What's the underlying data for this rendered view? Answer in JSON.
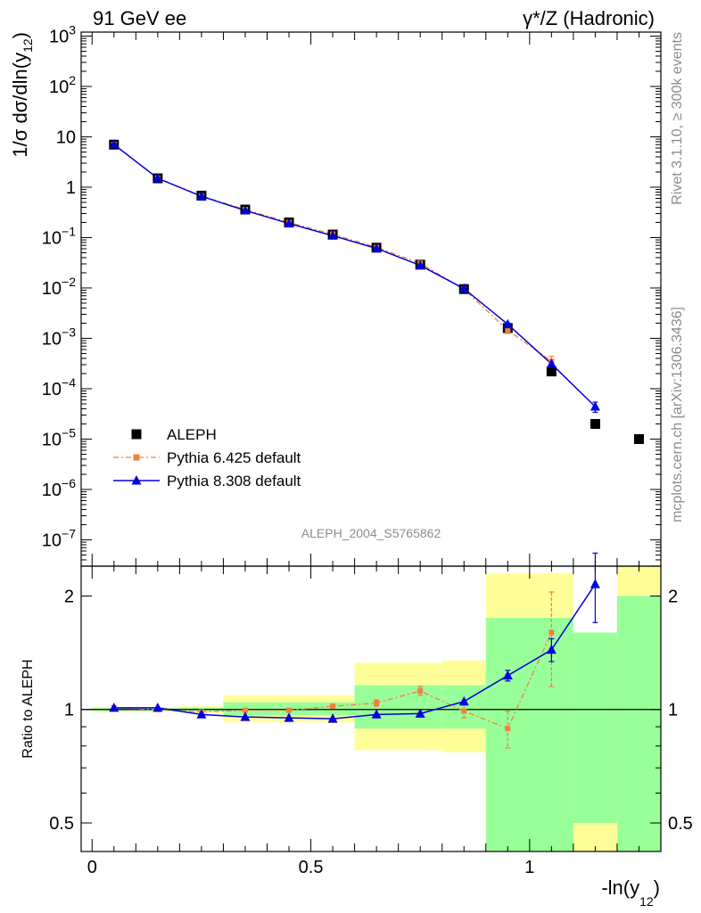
{
  "header": {
    "left": "91 GeV ee",
    "right": "γ*/Z (Hadronic)"
  },
  "side_labels": {
    "top": "Rivet 3.1.10, ≥ 300k events",
    "bottom": "mcplots.cern.ch [arXiv:1306.3436]"
  },
  "analysis_id": "ALEPH_2004_S5765862",
  "colors": {
    "aleph": "#000000",
    "pythia6": "#f08040",
    "pythia8": "#0000dd",
    "band_outer": "#ffff99",
    "band_inner": "#99ff99"
  },
  "chart_data": [
    {
      "type": "scatter",
      "panel": "main",
      "ylabel_parts": [
        "1/σ  dσ/dln(y",
        "12",
        ")"
      ],
      "xlabel_parts": [
        "-ln(y",
        "12",
        ")"
      ],
      "yscale": "log",
      "xlim": [
        -0.025,
        1.3
      ],
      "ylim": [
        3e-08,
        1200
      ],
      "y_ticks": [
        {
          "value": 1000,
          "base": "10",
          "exp": "3"
        },
        {
          "value": 100,
          "base": "10",
          "exp": "2"
        },
        {
          "value": 10,
          "base": "10",
          "exp": ""
        },
        {
          "value": 1,
          "base": "1",
          "exp": ""
        },
        {
          "value": 0.1,
          "base": "10",
          "exp": "−1"
        },
        {
          "value": 0.01,
          "base": "10",
          "exp": "−2"
        },
        {
          "value": 0.001,
          "base": "10",
          "exp": "−3"
        },
        {
          "value": 0.0001,
          "base": "10",
          "exp": "−4"
        },
        {
          "value": 1e-05,
          "base": "10",
          "exp": "−5"
        },
        {
          "value": 1e-06,
          "base": "10",
          "exp": "−6"
        },
        {
          "value": 1e-07,
          "base": "10",
          "exp": "−7"
        }
      ],
      "legend_position": "lower-left",
      "legend": [
        {
          "label": "ALEPH",
          "key": "aleph"
        },
        {
          "label": "Pythia 6.425 default",
          "key": "pythia6"
        },
        {
          "label": "Pythia 8.308 default",
          "key": "pythia8"
        }
      ],
      "series": [
        {
          "name": "ALEPH",
          "key": "aleph",
          "x": [
            0.05,
            0.15,
            0.25,
            0.35,
            0.45,
            0.55,
            0.65,
            0.75,
            0.85,
            0.95,
            1.05,
            1.15,
            1.25
          ],
          "y": [
            7.0,
            1.5,
            0.68,
            0.36,
            0.2,
            0.115,
            0.063,
            0.029,
            0.0095,
            0.0016,
            0.00022,
            2e-05,
            1e-05
          ]
        },
        {
          "name": "Pythia 6.425 default",
          "key": "pythia6",
          "x": [
            0.05,
            0.15,
            0.25,
            0.35,
            0.45,
            0.55,
            0.65,
            0.75,
            0.85,
            0.95,
            1.05
          ],
          "y": [
            7.1,
            1.52,
            0.67,
            0.36,
            0.2,
            0.117,
            0.064,
            0.031,
            0.0094,
            0.00145,
            0.00035
          ],
          "err_hi": [
            0,
            0,
            0,
            0,
            0,
            0,
            0,
            0,
            0,
            0.0002,
            9e-05
          ],
          "err_lo": [
            0,
            0,
            0,
            0,
            0,
            0,
            0,
            0,
            0,
            0.0002,
            9e-05
          ]
        },
        {
          "name": "Pythia 8.308 default",
          "key": "pythia8",
          "x": [
            0.05,
            0.15,
            0.25,
            0.35,
            0.45,
            0.55,
            0.65,
            0.75,
            0.85,
            0.95,
            1.05,
            1.15
          ],
          "y": [
            7.05,
            1.5,
            0.66,
            0.345,
            0.19,
            0.109,
            0.061,
            0.028,
            0.0097,
            0.0019,
            0.00031,
            4.4e-05
          ],
          "err_hi": [
            0,
            0,
            0,
            0,
            0,
            0,
            0,
            0,
            0,
            0.0001,
            3e-05,
            1e-05
          ],
          "err_lo": [
            0,
            0,
            0,
            0,
            0,
            0,
            0,
            0,
            0,
            0.0001,
            3e-05,
            1e-05
          ]
        }
      ]
    },
    {
      "type": "line",
      "panel": "ratio",
      "ylabel": "Ratio to ALEPH",
      "yscale": "log",
      "xlim": [
        -0.025,
        1.3
      ],
      "ylim": [
        0.42,
        2.4
      ],
      "x_ticks": [
        {
          "value": 0,
          "label": "0"
        },
        {
          "value": 0.5,
          "label": "0.5"
        },
        {
          "value": 1,
          "label": "1"
        }
      ],
      "y_ticks": [
        {
          "value": 0.5,
          "label": "0.5"
        },
        {
          "value": 1,
          "label": "1"
        },
        {
          "value": 2,
          "label": "2"
        }
      ],
      "bands": [
        {
          "x0": 0.0,
          "x1": 0.1,
          "outer": [
            0.985,
            1.015
          ],
          "inner": [
            0.992,
            1.008
          ]
        },
        {
          "x0": 0.1,
          "x1": 0.2,
          "outer": [
            0.985,
            1.015
          ],
          "inner": [
            0.992,
            1.008
          ]
        },
        {
          "x0": 0.2,
          "x1": 0.3,
          "outer": [
            0.98,
            1.02
          ],
          "inner": [
            0.99,
            1.01
          ]
        },
        {
          "x0": 0.3,
          "x1": 0.6,
          "outer": [
            0.925,
            1.09
          ],
          "inner": [
            0.965,
            1.045
          ]
        },
        {
          "x0": 0.6,
          "x1": 0.8,
          "outer": [
            0.78,
            1.33
          ],
          "inner": [
            0.89,
            1.16
          ]
        },
        {
          "x0": 0.8,
          "x1": 0.9,
          "outer": [
            0.77,
            1.35
          ],
          "inner": [
            0.89,
            1.16
          ]
        },
        {
          "x0": 0.9,
          "x1": 1.1,
          "outer": [
            0.42,
            2.3
          ],
          "inner": [
            0.42,
            1.75
          ]
        },
        {
          "x0": 1.1,
          "x1": 1.2,
          "outer": [
            0.42,
            1.6
          ],
          "inner": [
            0.5,
            1.6
          ]
        },
        {
          "x0": 1.2,
          "x1": 1.3,
          "outer": [
            0.42,
            2.4
          ],
          "inner": [
            0.42,
            2.0
          ]
        }
      ],
      "series": [
        {
          "name": "Pythia 6.425 default",
          "key": "pythia6",
          "x": [
            0.05,
            0.15,
            0.25,
            0.35,
            0.45,
            0.55,
            0.65,
            0.75,
            0.85,
            0.95,
            1.05
          ],
          "y": [
            1.01,
            1.0,
            0.985,
            0.995,
            0.995,
            1.02,
            1.04,
            1.12,
            0.99,
            0.89,
            1.6
          ],
          "err": [
            0,
            0,
            0,
            0,
            0,
            0,
            0.02,
            0.03,
            0.04,
            0.1,
            0.45
          ]
        },
        {
          "name": "Pythia 8.308 default",
          "key": "pythia8",
          "x": [
            0.05,
            0.15,
            0.25,
            0.35,
            0.45,
            0.55,
            0.65,
            0.75,
            0.85,
            0.95,
            1.05,
            1.15
          ],
          "y": [
            1.01,
            1.01,
            0.97,
            0.955,
            0.95,
            0.945,
            0.97,
            0.975,
            1.05,
            1.23,
            1.44,
            2.15
          ],
          "err": [
            0,
            0,
            0,
            0,
            0,
            0,
            0,
            0,
            0,
            0.04,
            0.1,
            0.45
          ]
        }
      ]
    }
  ]
}
